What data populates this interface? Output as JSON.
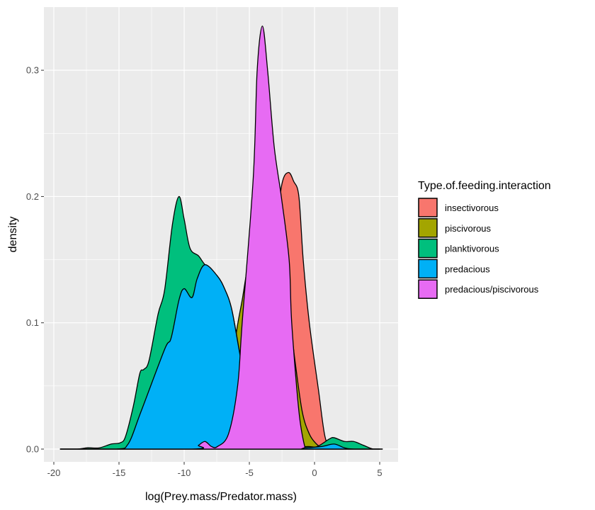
{
  "chart_data": {
    "type": "area",
    "subtype": "density",
    "title": "",
    "xlabel": "log(Prey.mass/Predator.mass)",
    "ylabel": "density",
    "xlim": [
      -20.76,
      6.41
    ],
    "ylim": [
      -0.0101,
      0.35
    ],
    "x_ticks": [
      -20,
      -15,
      -10,
      -5,
      0,
      5
    ],
    "y_ticks": [
      0.0,
      0.1,
      0.2,
      0.3
    ],
    "x_tick_labels": [
      "-20",
      "-15",
      "-10",
      "-5",
      "0",
      "5"
    ],
    "y_tick_labels": [
      "0.0",
      "0.1",
      "0.2",
      "0.3"
    ],
    "grid": true,
    "legend": {
      "title": "Type.of.feeding.interaction",
      "placement": "right"
    },
    "series": [
      {
        "name": "insectivorous",
        "color": "#F8766D",
        "points": [
          [
            -19.5,
            0
          ],
          [
            -8,
            0
          ],
          [
            -6,
            0.005
          ],
          [
            -5,
            0.03
          ],
          [
            -4,
            0.09
          ],
          [
            -3,
            0.17
          ],
          [
            -2.5,
            0.21
          ],
          [
            -2,
            0.219
          ],
          [
            -1.6,
            0.212
          ],
          [
            -1.2,
            0.2
          ],
          [
            -0.87,
            0.15
          ],
          [
            -0.4,
            0.1
          ],
          [
            0.3,
            0.047
          ],
          [
            0.8,
            0.01
          ],
          [
            1.3,
            0.001
          ],
          [
            2,
            0
          ],
          [
            5,
            0
          ]
        ]
      },
      {
        "name": "piscivorous",
        "color": "#A3A500",
        "points": [
          [
            -19.5,
            0
          ],
          [
            -8,
            0
          ],
          [
            -7,
            0.01
          ],
          [
            -6.5,
            0.05
          ],
          [
            -6,
            0.092
          ],
          [
            -5.55,
            0.118
          ],
          [
            -5,
            0.15
          ],
          [
            -4,
            0.18
          ],
          [
            -3,
            0.16
          ],
          [
            -2,
            0.11
          ],
          [
            -1.5,
            0.07
          ],
          [
            -0.95,
            0.03
          ],
          [
            -0.4,
            0.012
          ],
          [
            0.15,
            0.004
          ],
          [
            0.6,
            0.001
          ],
          [
            1.2,
            0
          ],
          [
            5,
            0
          ]
        ]
      },
      {
        "name": "planktivorous",
        "color": "#00BF7D",
        "points": [
          [
            -19.5,
            0
          ],
          [
            -18.2,
            0
          ],
          [
            -17.4,
            0.001
          ],
          [
            -16.5,
            0.001
          ],
          [
            -15.6,
            0.004
          ],
          [
            -14.9,
            0.005
          ],
          [
            -14.5,
            0.01
          ],
          [
            -13.9,
            0.034
          ],
          [
            -13.4,
            0.06
          ],
          [
            -13.1,
            0.063
          ],
          [
            -12.7,
            0.07
          ],
          [
            -12.0,
            0.107
          ],
          [
            -11.5,
            0.126
          ],
          [
            -10.9,
            0.178
          ],
          [
            -10.4,
            0.2
          ],
          [
            -10.0,
            0.182
          ],
          [
            -9.55,
            0.159
          ],
          [
            -8.9,
            0.153
          ],
          [
            -8.4,
            0.146
          ],
          [
            -7.45,
            0.137
          ],
          [
            -6.9,
            0.127
          ],
          [
            -6.36,
            0.111
          ],
          [
            -5.76,
            0.077
          ],
          [
            -5,
            0.03
          ],
          [
            -4,
            0.008
          ],
          [
            -2,
            0.002
          ],
          [
            -0.5,
            0.002
          ],
          [
            0.2,
            0.002
          ],
          [
            1.14,
            0.008
          ],
          [
            1.5,
            0.009
          ],
          [
            2.3,
            0.006
          ],
          [
            3.0,
            0.006
          ],
          [
            3.75,
            0.003
          ],
          [
            4.5,
            0
          ],
          [
            5.2,
            0
          ]
        ]
      },
      {
        "name": "predacious",
        "color": "#00B0F6",
        "points": [
          [
            -19.5,
            0
          ],
          [
            -15.2,
            0
          ],
          [
            -14.3,
            0.004
          ],
          [
            -13.3,
            0.03
          ],
          [
            -11.5,
            0.079
          ],
          [
            -11.0,
            0.088
          ],
          [
            -10.4,
            0.118
          ],
          [
            -10.0,
            0.127
          ],
          [
            -9.4,
            0.12
          ],
          [
            -9.0,
            0.135
          ],
          [
            -8.4,
            0.146
          ],
          [
            -7.45,
            0.137
          ],
          [
            -6.9,
            0.127
          ],
          [
            -6.36,
            0.111
          ],
          [
            -5.76,
            0.077
          ],
          [
            -5,
            0.035
          ],
          [
            -4,
            0.01
          ],
          [
            -3,
            0.002
          ],
          [
            -1,
            0.001
          ],
          [
            0.5,
            0.002
          ],
          [
            1.5,
            0.004
          ],
          [
            2.3,
            0.001
          ],
          [
            3,
            0
          ],
          [
            5.2,
            0
          ]
        ]
      },
      {
        "name": "predacious/piscivorous",
        "color": "#E76BF3",
        "points": [
          [
            -19.5,
            0
          ],
          [
            -9.4,
            0
          ],
          [
            -8.9,
            0.003
          ],
          [
            -8.4,
            0.006
          ],
          [
            -7.9,
            0.002
          ],
          [
            -7.45,
            0.002
          ],
          [
            -6.6,
            0.012
          ],
          [
            -5.9,
            0.05
          ],
          [
            -5.55,
            0.1
          ],
          [
            -4.7,
            0.215
          ],
          [
            -4.4,
            0.3
          ],
          [
            -4.0,
            0.335
          ],
          [
            -3.6,
            0.3
          ],
          [
            -3.1,
            0.24
          ],
          [
            -2.55,
            0.2
          ],
          [
            -1.95,
            0.15
          ],
          [
            -1.75,
            0.1
          ],
          [
            -1.2,
            0.03
          ],
          [
            -0.75,
            0.002
          ],
          [
            -0.5,
            0
          ],
          [
            5.2,
            0
          ]
        ]
      }
    ]
  }
}
